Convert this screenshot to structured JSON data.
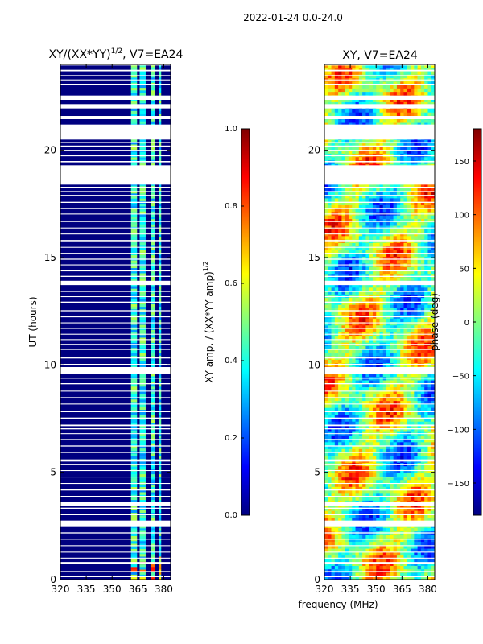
{
  "figure_title": "2022-01-24 0.0-24.0",
  "colors": {
    "jet_stops": [
      "#000080",
      "#0000ff",
      "#0080ff",
      "#00ffff",
      "#80ff80",
      "#ffff00",
      "#ff8000",
      "#ff0000",
      "#800000"
    ],
    "gap": "#ffffff",
    "axis": "#000000"
  },
  "chart_data": [
    {
      "type": "heatmap",
      "title_main": "XY/(XX*YY)",
      "title_sup": "1/2",
      "title_tail": ", V7=EA24",
      "xlabel": "",
      "ylabel": "UT (hours)",
      "xlim": [
        320,
        384
      ],
      "ylim": [
        0,
        24
      ],
      "xticks": [
        320,
        335,
        350,
        365,
        380
      ],
      "yticks": [
        0,
        5,
        10,
        15,
        20
      ],
      "colorbar": {
        "label_main": "XY amp. / (XX*YY amp)",
        "label_sup": "1/2",
        "range": [
          0.0,
          1.0
        ],
        "ticks": [
          "0.0",
          "0.2",
          "0.4",
          "0.6",
          "0.8",
          "1.0"
        ]
      },
      "description_values": {
        "background_level": 0.05,
        "bright_band_mhz": [
          [
            361,
            364.5
          ],
          [
            366,
            369.5
          ],
          [
            372.5,
            375
          ],
          [
            377,
            378.5
          ]
        ],
        "bright_level": 0.38,
        "peak_level": 0.7
      }
    },
    {
      "type": "heatmap",
      "title": "XY, V7=EA24",
      "xlabel": "frequency (MHz)",
      "ylabel": "",
      "xlim": [
        320,
        384
      ],
      "ylim": [
        0,
        24
      ],
      "xticks": [
        320,
        335,
        350,
        365,
        380
      ],
      "yticks": [
        0,
        5,
        10,
        15,
        20
      ],
      "colorbar": {
        "label": "phase (deg)",
        "range": [
          -180,
          180
        ],
        "ticks": [
          "−150",
          "−100",
          "−50",
          "0",
          "50",
          "100",
          "150"
        ],
        "tick_values": [
          -150,
          -100,
          -50,
          0,
          50,
          100,
          150
        ]
      }
    }
  ],
  "flag_gaps_hours": [
    [
      24.0,
      23.95
    ],
    [
      23.75,
      23.68
    ],
    [
      23.5,
      23.45
    ],
    [
      23.3,
      23.26
    ],
    [
      23.1,
      23.05
    ],
    [
      22.55,
      22.35
    ],
    [
      22.15,
      21.95
    ],
    [
      21.6,
      21.45
    ],
    [
      21.2,
      20.5
    ],
    [
      20.4,
      20.34
    ],
    [
      20.22,
      20.16
    ],
    [
      20.02,
      19.96
    ],
    [
      19.78,
      19.72
    ],
    [
      19.5,
      19.44
    ],
    [
      19.3,
      18.4
    ],
    [
      18.3,
      18.26
    ],
    [
      18.1,
      18.06
    ],
    [
      17.92,
      17.88
    ],
    [
      17.6,
      17.55
    ],
    [
      17.3,
      17.26
    ],
    [
      17.05,
      17.01
    ],
    [
      16.7,
      16.66
    ],
    [
      16.4,
      16.36
    ],
    [
      16.12,
      16.08
    ],
    [
      15.82,
      15.76
    ],
    [
      15.5,
      15.46
    ],
    [
      15.22,
      15.18
    ],
    [
      14.95,
      14.9
    ],
    [
      14.68,
      14.64
    ],
    [
      14.4,
      14.36
    ],
    [
      14.15,
      14.1
    ],
    [
      13.92,
      13.72
    ],
    [
      13.45,
      13.4
    ],
    [
      13.2,
      13.16
    ],
    [
      12.95,
      12.9
    ],
    [
      12.55,
      12.5
    ],
    [
      12.28,
      12.22
    ],
    [
      11.98,
      11.94
    ],
    [
      11.72,
      11.68
    ],
    [
      11.45,
      11.41
    ],
    [
      11.2,
      11.16
    ],
    [
      10.98,
      10.94
    ],
    [
      10.75,
      10.7
    ],
    [
      10.35,
      10.3
    ],
    [
      10.05,
      10.0
    ],
    [
      9.9,
      9.6
    ],
    [
      9.4,
      9.36
    ],
    [
      9.15,
      9.1
    ],
    [
      8.8,
      8.76
    ],
    [
      8.5,
      8.45
    ],
    [
      8.2,
      8.16
    ],
    [
      7.85,
      7.8
    ],
    [
      7.55,
      7.5
    ],
    [
      7.22,
      7.15
    ],
    [
      7.05,
      7.0
    ],
    [
      6.82,
      6.78
    ],
    [
      6.55,
      6.5
    ],
    [
      6.25,
      6.2
    ],
    [
      5.95,
      5.9
    ],
    [
      5.6,
      5.5
    ],
    [
      5.38,
      5.33
    ],
    [
      5.1,
      5.06
    ],
    [
      4.8,
      4.76
    ],
    [
      4.5,
      4.46
    ],
    [
      4.2,
      4.15
    ],
    [
      3.9,
      3.86
    ],
    [
      3.6,
      3.45
    ],
    [
      3.35,
      3.3
    ],
    [
      3.05,
      3.0
    ],
    [
      2.75,
      2.45
    ],
    [
      2.2,
      2.15
    ],
    [
      1.9,
      1.86
    ],
    [
      1.6,
      1.56
    ],
    [
      1.3,
      1.26
    ],
    [
      1.02,
      0.98
    ],
    [
      0.82,
      0.74
    ],
    [
      0.4,
      0.36
    ],
    [
      0.15,
      0.12
    ]
  ]
}
